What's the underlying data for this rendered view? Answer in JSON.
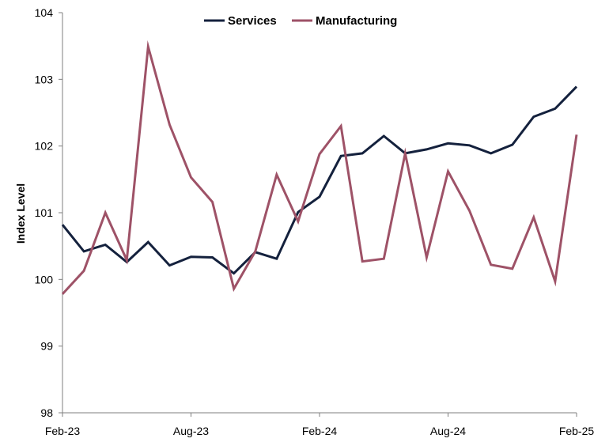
{
  "chart_data": {
    "type": "line",
    "title": "",
    "xlabel": "",
    "ylabel": "Index Level",
    "ylim": [
      98,
      104
    ],
    "yticks": [
      "98",
      "99",
      "100",
      "101",
      "102",
      "103",
      "104"
    ],
    "xtick_labels": [
      "Feb-23",
      "Aug-23",
      "Feb-24",
      "Aug-24",
      "Feb-25"
    ],
    "x": [
      "Feb-23",
      "Mar-23",
      "Apr-23",
      "May-23",
      "Jun-23",
      "Jul-23",
      "Aug-23",
      "Sep-23",
      "Oct-23",
      "Nov-23",
      "Dec-23",
      "Jan-24",
      "Feb-24",
      "Mar-24",
      "Apr-24",
      "May-24",
      "Jun-24",
      "Jul-24",
      "Aug-24",
      "Sep-24",
      "Oct-24",
      "Nov-24",
      "Dec-24",
      "Jan-25",
      "Feb-25"
    ],
    "grid": false,
    "legend_position": "top-center",
    "series": [
      {
        "name": "Services",
        "color": "#14213d",
        "values": [
          100.82,
          100.42,
          100.52,
          100.26,
          100.56,
          100.21,
          100.34,
          100.33,
          100.09,
          100.41,
          100.31,
          101.01,
          101.24,
          101.85,
          101.89,
          102.15,
          101.89,
          101.95,
          102.04,
          102.01,
          101.89,
          102.02,
          102.44,
          102.56,
          102.89
        ]
      },
      {
        "name": "Manufacturing",
        "color": "#9e5267",
        "values": [
          99.78,
          100.13,
          101.0,
          100.29,
          103.49,
          102.32,
          101.53,
          101.16,
          99.86,
          100.42,
          101.57,
          100.87,
          101.88,
          102.3,
          100.27,
          100.31,
          101.89,
          100.33,
          101.62,
          101.03,
          100.22,
          100.16,
          100.93,
          99.97,
          102.17
        ]
      }
    ]
  }
}
